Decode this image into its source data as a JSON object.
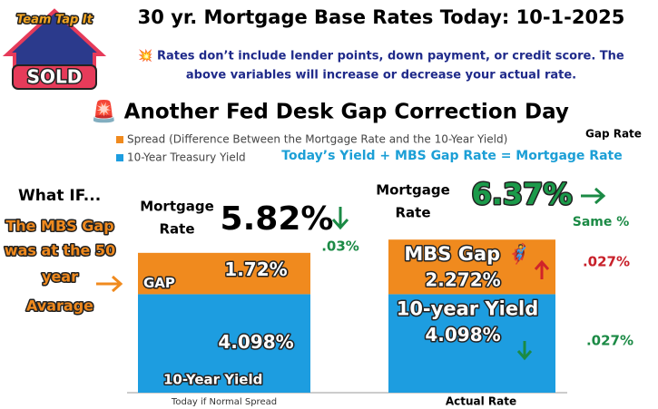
{
  "logo": {
    "top": "Team Tap It",
    "badge": "SOLD"
  },
  "chart_data": {
    "type": "bar",
    "stacked": true,
    "title": "30 yr. Mortgage Base Rates Today: 10-1-2025",
    "subtitle": [
      "💥 Rates don’t include lender points, down payment, or credit score. The",
      "above variables will increase or decrease your actual rate."
    ],
    "headline": "🚨 Another Fed Desk Gap Correction Day",
    "equation": "Today’s  Yield +  MBS Gap Rate = Mortgage Rate",
    "gap_rate_label": "Gap Rate",
    "categories": [
      "Today if Normal Spread",
      "Actual Rate"
    ],
    "series": [
      {
        "name": "Spread (Difference Between the Mortgage Rate and the 10-Year Yield)",
        "color": "#f08a1e",
        "values": [
          1.72,
          2.272
        ],
        "value_labels": [
          "1.72%",
          "2.272%"
        ],
        "segment_names": [
          "GAP",
          "MBS Gap 🦸"
        ]
      },
      {
        "name": "10-Year Treasury Yield",
        "color": "#1d9de0",
        "values": [
          4.098,
          4.098
        ],
        "value_labels": [
          "4.098%",
          "4.098%"
        ],
        "segment_names": [
          "10-Year Yield",
          "10-year Yield"
        ]
      }
    ],
    "totals": {
      "label": [
        "Mortgage",
        "Rate"
      ],
      "values": [
        5.82,
        6.37
      ],
      "value_labels": [
        "5.82%",
        "6.37%"
      ]
    },
    "what_if": "What IF...",
    "what_if_note": [
      "The MBS Gap",
      "was at the 50",
      "year",
      "Avarage"
    ],
    "changes": {
      "total": [
        ".03%",
        "Same %"
      ],
      "gap": ".027%",
      "yield": ".027%"
    }
  }
}
